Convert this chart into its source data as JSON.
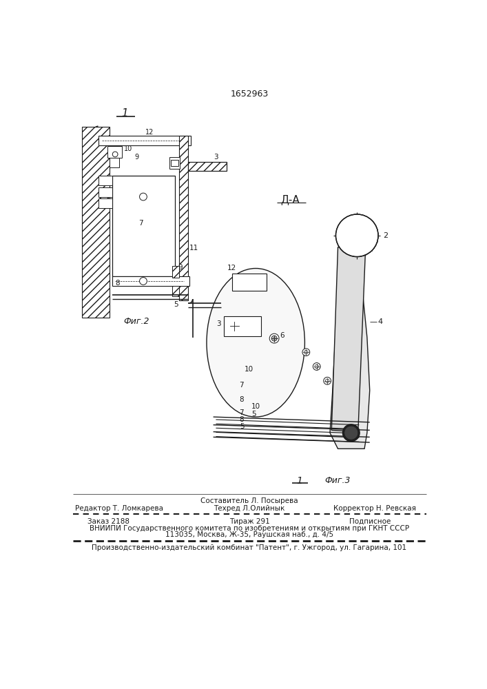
{
  "patent_number": "1652963",
  "fig2_label": "Фиг.2",
  "fig3_label": "Фиг.3",
  "da_label": "Д-А",
  "footer_line1_left": "Редактор Т. Ломкарева",
  "footer_line1_center": "Составитель Л. Посырева",
  "footer_line1_right": "Корректор Н. Ревская",
  "footer_line2_center": "Техред Л.Олийнык",
  "footer_line3_left": "Заказ 2188",
  "footer_line3_center": "Тираж 291",
  "footer_line3_right": "Подписное",
  "footer_line4": "ВНИИПИ Государственного комитета по изобретениям и открытиям при ГКНТ СССР",
  "footer_line5": "113035, Москва, Ж-35, Раушская наб., д. 4/5",
  "footer_line6": "Производственно-издательский комбинат \"Патент\", г. Ужгород, ул. Гагарина, 101",
  "bg_color": "#ffffff",
  "line_color": "#1a1a1a"
}
